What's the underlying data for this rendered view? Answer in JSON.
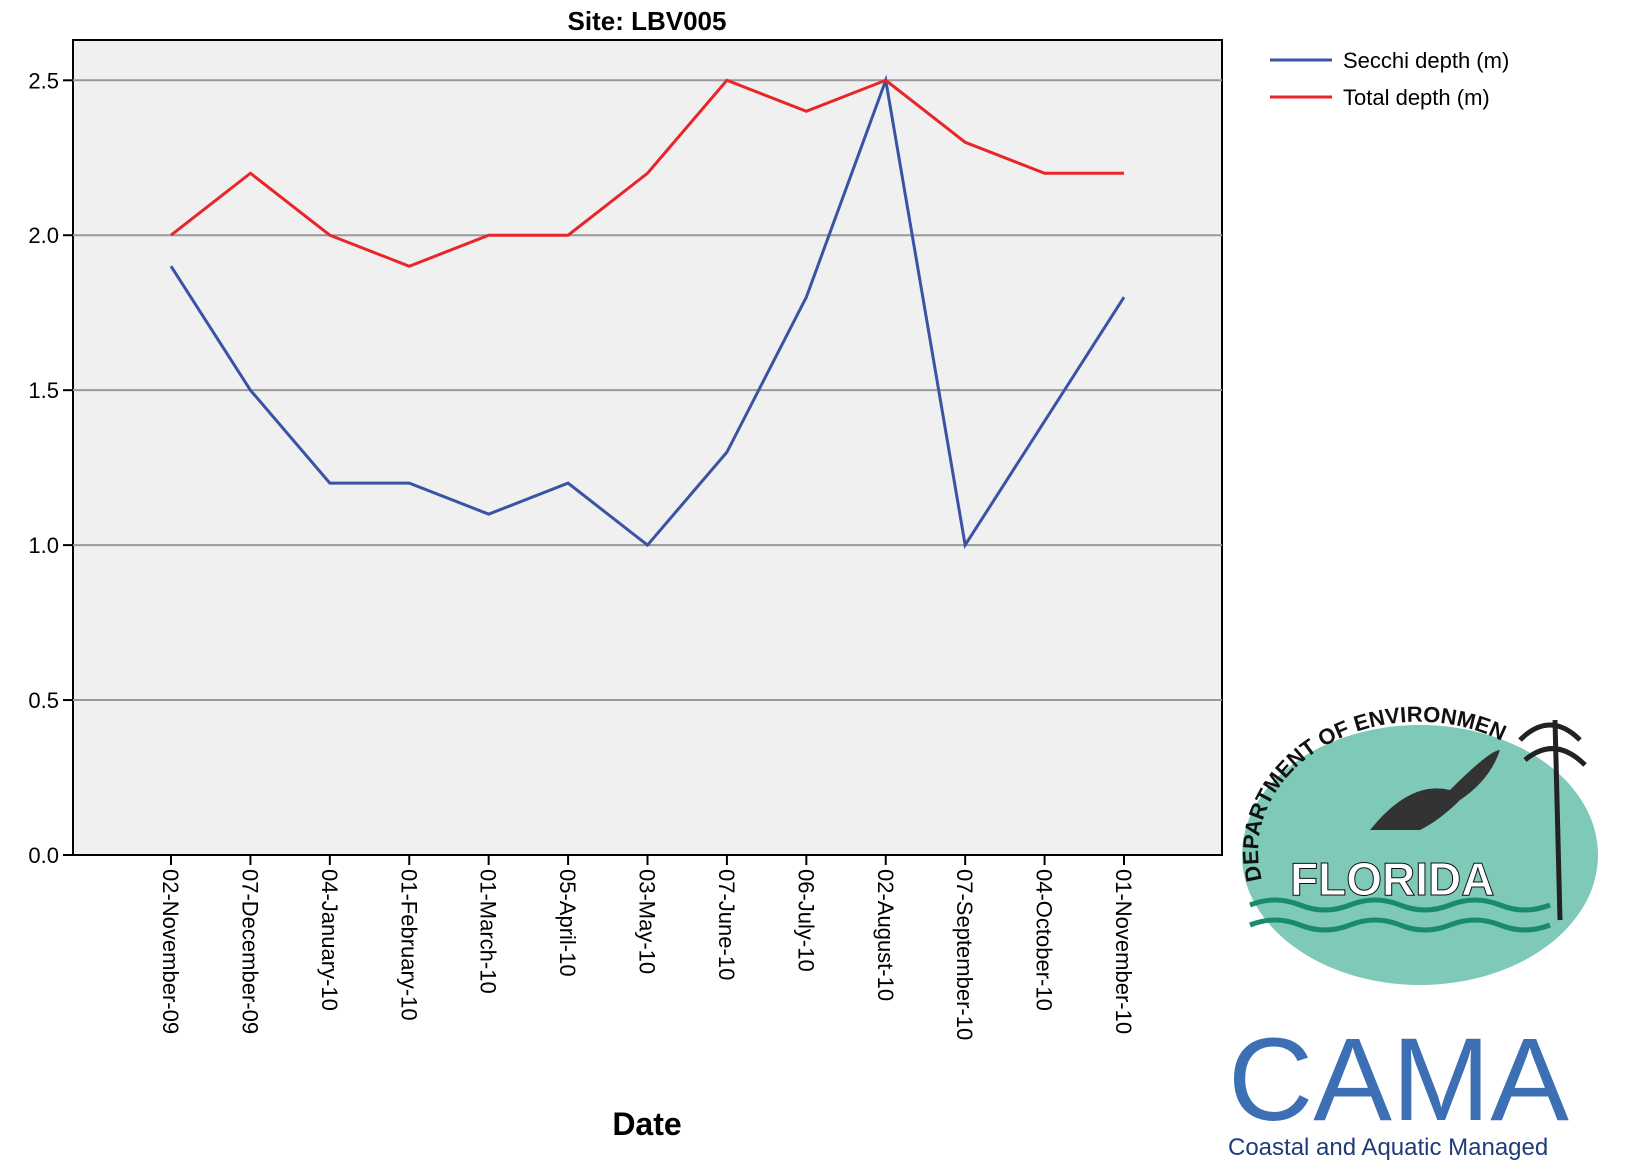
{
  "chart_data": {
    "type": "line",
    "title": "Site: LBV005",
    "x_label": "Date",
    "categories": [
      "02-November-09",
      "07-December-09",
      "04-January-10",
      "01-February-10",
      "01-March-10",
      "05-April-10",
      "03-May-10",
      "07-June-10",
      "06-July-10",
      "02-August-10",
      "07-September-10",
      "04-October-10",
      "01-November-10"
    ],
    "series": [
      {
        "name": "Secchi depth (m)",
        "color": "#3a53a4",
        "values": [
          1.9,
          1.5,
          1.2,
          1.2,
          1.1,
          1.2,
          1.0,
          1.3,
          1.8,
          2.5,
          1.0,
          1.4,
          1.8
        ]
      },
      {
        "name": "Total depth (m)",
        "color": "#e8262a",
        "values": [
          2.0,
          2.2,
          2.0,
          1.9,
          2.0,
          2.0,
          2.2,
          2.5,
          2.4,
          2.5,
          2.3,
          2.2,
          2.2
        ]
      }
    ],
    "ylim": [
      0,
      2.63
    ],
    "yticks": [
      {
        "value": 0,
        "label": "0.0"
      },
      0.5,
      {
        "value": 1,
        "label": "1.0"
      },
      1.5,
      {
        "value": 2,
        "label": "2.0"
      },
      2.5
    ],
    "grid": true,
    "legend": "outside-right"
  },
  "logo": {
    "arc_text": "DEPARTMENT OF ENVIRONMENTAL PROTECTION",
    "state": "FLORIDA",
    "acronym": "CAMA",
    "subtitle": "Coastal and Aquatic Managed"
  }
}
